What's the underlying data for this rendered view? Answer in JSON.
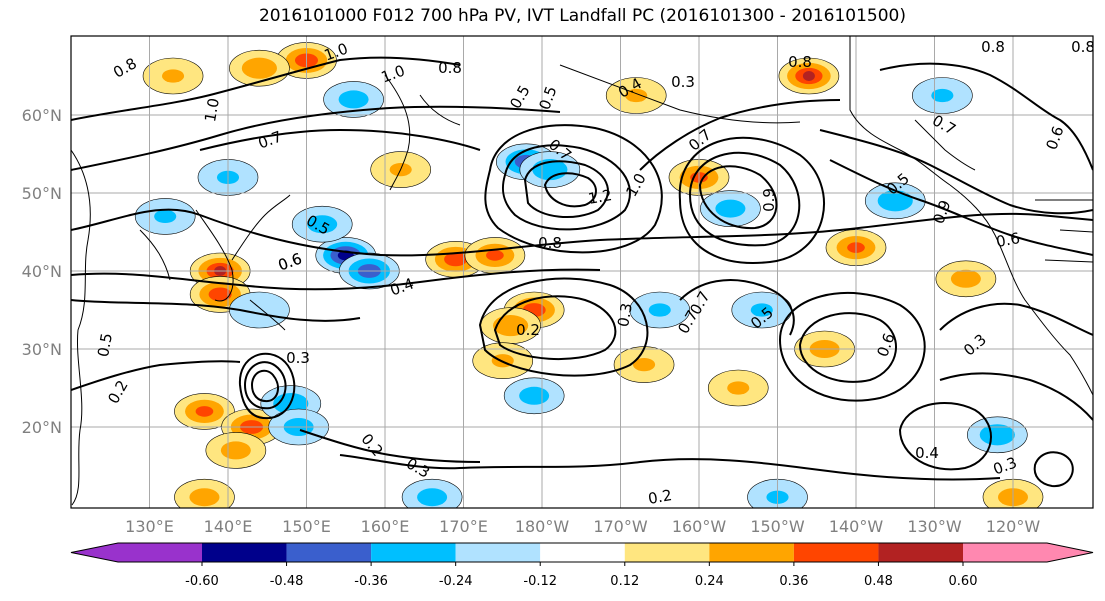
{
  "title": "2016101000 F012 700 hPa PV, IVT Landfall PC (2016101300 - 2016101500)",
  "lat_labels": [
    "60°N",
    "50°N",
    "40°N",
    "30°N",
    "20°N"
  ],
  "lon_labels": [
    "130°E",
    "140°E",
    "150°E",
    "160°E",
    "170°E",
    "180°W",
    "170°W",
    "160°W",
    "150°W",
    "140°W",
    "130°W",
    "120°W"
  ],
  "colorbar": {
    "labels": [
      "-0.60",
      "-0.48",
      "-0.36",
      "-0.24",
      "-0.12",
      "0.12",
      "0.24",
      "0.36",
      "0.48",
      "0.60"
    ],
    "colors": [
      "#9932CC",
      "#00008B",
      "#3A5FCD",
      "#00BFFF",
      "#B0E2FF",
      "#FFFFFF",
      "#FFE680",
      "#FFA500",
      "#FF4500",
      "#B22222",
      "#FF88B0"
    ]
  },
  "contour_labels": [
    "1.0",
    "0.8",
    "1.0",
    "0.8",
    "0.5",
    "0.4",
    "0.3",
    "0.8",
    "0.8",
    "0.8",
    "0.7",
    "1.0",
    "0.7",
    "0.6",
    "0.7",
    "0.7",
    "1.2",
    "1.0",
    "0.8",
    "0.5",
    "0.6",
    "0.4",
    "0.2",
    "0.3",
    "0.7",
    "0.5",
    "0.7",
    "0.6",
    "0.3",
    "0.5",
    "0.3",
    "0.2",
    "0.2",
    "0.3",
    "0.4",
    "0.3",
    "0.2",
    "0.5",
    "0.6",
    "0.6",
    "0.9",
    "0.5",
    "0.9"
  ],
  "fields": {
    "positive": [
      {
        "lon": 150,
        "lat": 67,
        "v": 0.45
      },
      {
        "lon": 144,
        "lat": 66,
        "v": 0.35
      },
      {
        "lon": 139,
        "lat": 40,
        "v": 0.5
      },
      {
        "lon": 139,
        "lat": 37,
        "v": 0.45
      },
      {
        "lon": 169,
        "lat": 41.5,
        "v": 0.45
      },
      {
        "lon": 174,
        "lat": 42,
        "v": 0.4
      },
      {
        "lon": 179,
        "lat": 35,
        "v": 0.45
      },
      {
        "lon": 176,
        "lat": 33,
        "v": 0.35
      },
      {
        "lon": -160,
        "lat": 52,
        "v": 0.4
      },
      {
        "lon": -146,
        "lat": 65,
        "v": 0.5
      },
      {
        "lon": -140,
        "lat": 43,
        "v": 0.4
      },
      {
        "lon": -144,
        "lat": 30,
        "v": 0.3
      },
      {
        "lon": 137,
        "lat": 22,
        "v": 0.4
      },
      {
        "lon": 143,
        "lat": 20,
        "v": 0.45
      },
      {
        "lon": 141,
        "lat": 17,
        "v": 0.3
      },
      {
        "lon": -126,
        "lat": 39,
        "v": 0.3
      },
      {
        "lon": -120,
        "lat": 11,
        "v": 0.3
      },
      {
        "lon": 137,
        "lat": 11,
        "v": 0.3
      },
      {
        "lon": 175,
        "lat": 28.5,
        "v": 0.25
      },
      {
        "lon": -167,
        "lat": 28,
        "v": 0.25
      },
      {
        "lon": -155,
        "lat": 25,
        "v": 0.25
      },
      {
        "lon": 162,
        "lat": 53,
        "v": 0.25
      },
      {
        "lon": 133,
        "lat": 65,
        "v": 0.25
      },
      {
        "lon": -168,
        "lat": 62.5,
        "v": 0.25
      }
    ],
    "negative": [
      {
        "lon": 155,
        "lat": 42,
        "v": -0.55
      },
      {
        "lon": 158,
        "lat": 40,
        "v": -0.45
      },
      {
        "lon": 152,
        "lat": 46,
        "v": -0.3
      },
      {
        "lon": 178,
        "lat": 54,
        "v": -0.45
      },
      {
        "lon": 181,
        "lat": 53,
        "v": -0.35
      },
      {
        "lon": -135,
        "lat": 49,
        "v": -0.35
      },
      {
        "lon": -156,
        "lat": 48,
        "v": -0.3
      },
      {
        "lon": -122,
        "lat": 19,
        "v": -0.35
      },
      {
        "lon": 148,
        "lat": 23,
        "v": -0.35
      },
      {
        "lon": 149,
        "lat": 20,
        "v": -0.3
      },
      {
        "lon": -165,
        "lat": 35,
        "v": -0.25
      },
      {
        "lon": 179,
        "lat": 24,
        "v": -0.3
      },
      {
        "lon": 156,
        "lat": 62,
        "v": -0.3
      },
      {
        "lon": 140,
        "lat": 52,
        "v": -0.25
      },
      {
        "lon": -129,
        "lat": 62.5,
        "v": -0.25
      },
      {
        "lon": 166,
        "lat": 11,
        "v": -0.3
      },
      {
        "lon": -150,
        "lat": 11,
        "v": -0.25
      },
      {
        "lon": 144,
        "lat": 35,
        "v": -0.2
      },
      {
        "lon": 132,
        "lat": 47,
        "v": -0.25
      },
      {
        "lon": -152,
        "lat": 35,
        "v": -0.25
      }
    ]
  }
}
